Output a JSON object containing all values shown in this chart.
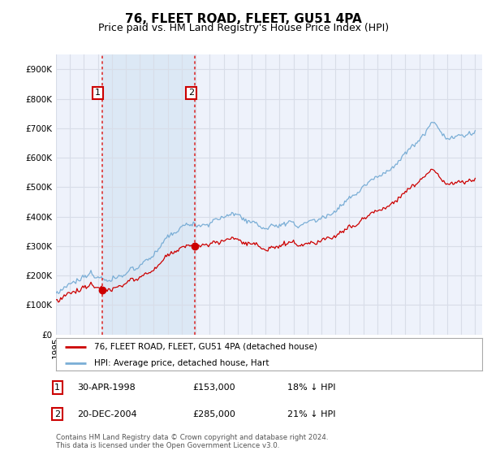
{
  "title": "76, FLEET ROAD, FLEET, GU51 4PA",
  "subtitle": "Price paid vs. HM Land Registry's House Price Index (HPI)",
  "footnote": "Contains HM Land Registry data © Crown copyright and database right 2024.\nThis data is licensed under the Open Government Licence v3.0.",
  "legend_entry1": "76, FLEET ROAD, FLEET, GU51 4PA (detached house)",
  "legend_entry2": "HPI: Average price, detached house, Hart",
  "sale1_date": "30-APR-1998",
  "sale1_price": "£153,000",
  "sale1_hpi": "18% ↓ HPI",
  "sale1_year": 1998.29,
  "sale1_value": 153000,
  "sale2_date": "20-DEC-2004",
  "sale2_price": "£285,000",
  "sale2_hpi": "21% ↓ HPI",
  "sale2_year": 2004.96,
  "sale2_value": 285000,
  "ylim_min": 0,
  "ylim_max": 950000,
  "xlim_min": 1995,
  "xlim_max": 2025.5,
  "background_color": "#ffffff",
  "plot_bg_color": "#eef2fb",
  "grid_color": "#d8dde8",
  "shade_color": "#dce8f5",
  "hpi_line_color": "#7aaed6",
  "price_line_color": "#cc0000",
  "vline_color": "#dd3333",
  "sale_marker_color": "#cc0000",
  "title_fontsize": 11,
  "subtitle_fontsize": 9,
  "tick_label_fontsize": 7.5
}
